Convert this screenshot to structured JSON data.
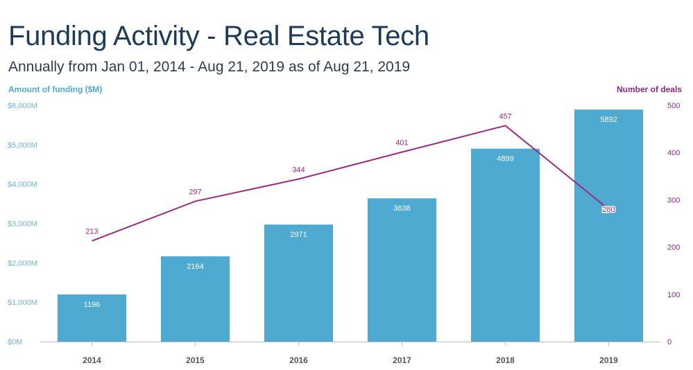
{
  "header": {
    "title": "Funding Activity - Real Estate Tech",
    "subtitle": "Annually from Jan 01, 2014 - Aug 21, 2019 as of Aug 21, 2019"
  },
  "chart_data": {
    "type": "bar",
    "categories": [
      "2014",
      "2015",
      "2016",
      "2017",
      "2018",
      "2019"
    ],
    "series": [
      {
        "type": "bar",
        "values": [
          1196,
          2164,
          2971,
          3638,
          4899,
          5892
        ],
        "axis": "left",
        "color": "#4faad1"
      },
      {
        "type": "line",
        "values": [
          213,
          297,
          344,
          401,
          457,
          280
        ],
        "axis": "right",
        "color": "#9b2a85"
      }
    ],
    "ylabel": "Amount of funding ($M)",
    "y2label": "Number of deals",
    "ylim": [
      0,
      6000
    ],
    "y2lim": [
      0,
      500
    ],
    "yticks": [
      0,
      1000,
      2000,
      3000,
      4000,
      5000,
      6000
    ],
    "ytick_labels": [
      "$0M",
      "$1,000M",
      "$2,000M",
      "$3,000M",
      "$4,000M",
      "$5,000M",
      "$6,000M"
    ],
    "y2ticks": [
      0,
      100,
      200,
      300,
      400,
      500
    ],
    "y2tick_labels": [
      "0",
      "100",
      "200",
      "300",
      "400",
      "500"
    ],
    "grid": false,
    "legend": "none"
  }
}
